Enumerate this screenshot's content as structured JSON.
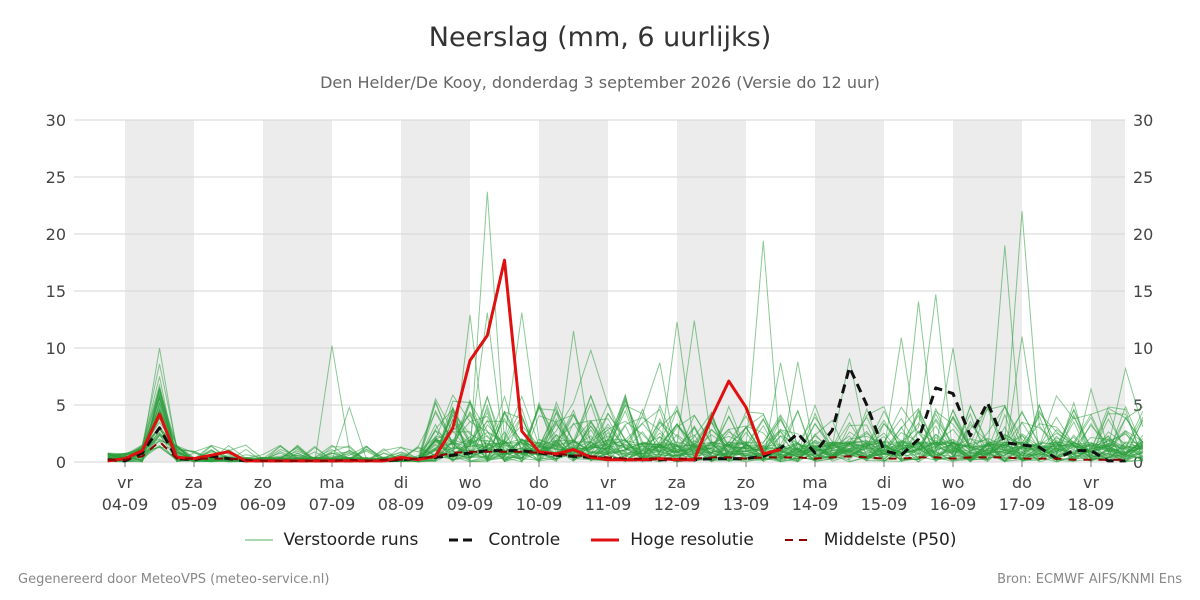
{
  "chart_data": {
    "type": "line",
    "title": "Neerslag (mm, 6 uurlijks)",
    "subtitle": "Den Helder/De Kooy, donderdag  3 september 2026 (Versie do 12 uur)",
    "ylim": [
      0,
      30
    ],
    "yticks": [
      0,
      5,
      10,
      15,
      20,
      25,
      30
    ],
    "x_categories": [
      {
        "day": "vr",
        "date": "04-09"
      },
      {
        "day": "za",
        "date": "05-09"
      },
      {
        "day": "zo",
        "date": "06-09"
      },
      {
        "day": "ma",
        "date": "07-09"
      },
      {
        "day": "di",
        "date": "08-09"
      },
      {
        "day": "wo",
        "date": "09-09"
      },
      {
        "day": "do",
        "date": "10-09"
      },
      {
        "day": "vr",
        "date": "11-09"
      },
      {
        "day": "za",
        "date": "12-09"
      },
      {
        "day": "zo",
        "date": "13-09"
      },
      {
        "day": "ma",
        "date": "14-09"
      },
      {
        "day": "di",
        "date": "15-09"
      },
      {
        "day": "wo",
        "date": "16-09"
      },
      {
        "day": "do",
        "date": "17-09"
      },
      {
        "day": "vr",
        "date": "18-09"
      }
    ],
    "grid": true,
    "legend_position": "bottom",
    "series": [
      {
        "name": "Controle",
        "style": "dashed",
        "color": "#111111",
        "points": [
          [
            -0.25,
            0.2
          ],
          [
            0,
            0.1
          ],
          [
            0.25,
            0.8
          ],
          [
            0.5,
            3.0
          ],
          [
            0.75,
            0.3
          ],
          [
            1,
            0.2
          ],
          [
            1.25,
            0.5
          ],
          [
            1.5,
            0.3
          ],
          [
            1.75,
            0.1
          ],
          [
            2,
            0.1
          ],
          [
            2.25,
            0.1
          ],
          [
            2.5,
            0.1
          ],
          [
            2.75,
            0.1
          ],
          [
            3,
            0.1
          ],
          [
            3.25,
            0.1
          ],
          [
            3.5,
            0.1
          ],
          [
            3.75,
            0.1
          ],
          [
            4,
            0.2
          ],
          [
            4.25,
            0.3
          ],
          [
            4.5,
            0.4
          ],
          [
            4.75,
            0.6
          ],
          [
            5,
            0.8
          ],
          [
            5.25,
            1.0
          ],
          [
            5.5,
            1.0
          ],
          [
            5.75,
            1.0
          ],
          [
            6,
            0.8
          ],
          [
            6.25,
            0.6
          ],
          [
            6.5,
            0.5
          ],
          [
            6.75,
            0.4
          ],
          [
            7,
            0.3
          ],
          [
            7.25,
            0.2
          ],
          [
            7.5,
            0.2
          ],
          [
            7.75,
            0.2
          ],
          [
            8,
            0.2
          ],
          [
            8.25,
            0.2
          ],
          [
            8.5,
            0.3
          ],
          [
            8.75,
            0.3
          ],
          [
            9,
            0.3
          ],
          [
            9.25,
            0.5
          ],
          [
            9.5,
            1.2
          ],
          [
            9.75,
            2.5
          ],
          [
            10,
            0.8
          ],
          [
            10.25,
            2.8
          ],
          [
            10.5,
            8.3
          ],
          [
            10.75,
            5.0
          ],
          [
            11,
            1.0
          ],
          [
            11.25,
            0.6
          ],
          [
            11.5,
            2.0
          ],
          [
            11.75,
            6.5
          ],
          [
            12,
            6.0
          ],
          [
            12.25,
            2.3
          ],
          [
            12.5,
            5.2
          ],
          [
            12.75,
            1.7
          ],
          [
            13,
            1.5
          ],
          [
            13.25,
            1.3
          ],
          [
            13.5,
            0.3
          ],
          [
            13.75,
            1.0
          ],
          [
            14,
            1.0
          ],
          [
            14.25,
            0.1
          ],
          [
            14.5,
            0.1
          ]
        ]
      },
      {
        "name": "Hoge resolutie",
        "style": "solid",
        "color": "#e01010",
        "points": [
          [
            -0.25,
            0.1
          ],
          [
            0,
            0.3
          ],
          [
            0.25,
            1.0
          ],
          [
            0.5,
            4.2
          ],
          [
            0.75,
            0.4
          ],
          [
            1,
            0.3
          ],
          [
            1.25,
            0.6
          ],
          [
            1.5,
            0.9
          ],
          [
            1.75,
            0.1
          ],
          [
            2,
            0.1
          ],
          [
            2.25,
            0.1
          ],
          [
            2.5,
            0.1
          ],
          [
            2.75,
            0.1
          ],
          [
            3,
            0.1
          ],
          [
            3.25,
            0.1
          ],
          [
            3.5,
            0.1
          ],
          [
            3.75,
            0.1
          ],
          [
            4,
            0.4
          ],
          [
            4.25,
            0.2
          ],
          [
            4.5,
            0.5
          ],
          [
            4.75,
            3.0
          ],
          [
            5,
            8.9
          ],
          [
            5.25,
            11.1
          ],
          [
            5.5,
            17.7
          ],
          [
            5.75,
            2.7
          ],
          [
            6,
            0.9
          ],
          [
            6.25,
            0.7
          ],
          [
            6.5,
            1.1
          ],
          [
            6.75,
            0.4
          ],
          [
            7,
            0.2
          ],
          [
            7.25,
            0.2
          ],
          [
            7.5,
            0.2
          ],
          [
            7.75,
            0.3
          ],
          [
            8,
            0.2
          ],
          [
            8.25,
            0.2
          ],
          [
            8.5,
            3.9
          ],
          [
            8.75,
            7.1
          ],
          [
            9,
            4.8
          ],
          [
            9.25,
            0.7
          ],
          [
            9.5,
            1.1
          ]
        ]
      },
      {
        "name": "Middelste (P50)",
        "style": "dashed",
        "color": "#8b0000",
        "points": [
          [
            -0.25,
            0.2
          ],
          [
            0,
            0.2
          ],
          [
            0.25,
            0.5
          ],
          [
            0.5,
            1.8
          ],
          [
            0.75,
            0.3
          ],
          [
            1,
            0.3
          ],
          [
            1.25,
            0.3
          ],
          [
            1.5,
            0.3
          ],
          [
            1.75,
            0.2
          ],
          [
            2,
            0.1
          ],
          [
            2.25,
            0.1
          ],
          [
            2.5,
            0.1
          ],
          [
            2.75,
            0.1
          ],
          [
            3,
            0.1
          ],
          [
            3.25,
            0.2
          ],
          [
            3.5,
            0.1
          ],
          [
            3.75,
            0.2
          ],
          [
            4,
            0.2
          ],
          [
            4.25,
            0.3
          ],
          [
            4.5,
            0.5
          ],
          [
            4.75,
            0.8
          ],
          [
            5,
            0.9
          ],
          [
            5.25,
            0.9
          ],
          [
            5.5,
            0.9
          ],
          [
            5.75,
            0.9
          ],
          [
            6,
            0.8
          ],
          [
            6.25,
            0.7
          ],
          [
            6.5,
            0.6
          ],
          [
            6.75,
            0.5
          ],
          [
            7,
            0.4
          ],
          [
            7.25,
            0.3
          ],
          [
            7.5,
            0.3
          ],
          [
            7.75,
            0.3
          ],
          [
            8,
            0.3
          ],
          [
            8.25,
            0.3
          ],
          [
            8.5,
            0.4
          ],
          [
            8.75,
            0.4
          ],
          [
            9,
            0.3
          ],
          [
            9.25,
            0.4
          ],
          [
            9.5,
            0.4
          ],
          [
            9.75,
            0.4
          ],
          [
            10,
            0.3
          ],
          [
            10.25,
            0.4
          ],
          [
            10.5,
            0.5
          ],
          [
            10.75,
            0.4
          ],
          [
            11,
            0.3
          ],
          [
            11.25,
            0.3
          ],
          [
            11.5,
            0.4
          ],
          [
            11.75,
            0.4
          ],
          [
            12,
            0.3
          ],
          [
            12.25,
            0.4
          ],
          [
            12.5,
            0.4
          ],
          [
            12.75,
            0.4
          ],
          [
            13,
            0.3
          ],
          [
            13.25,
            0.3
          ],
          [
            13.5,
            0.3
          ],
          [
            13.75,
            0.2
          ],
          [
            14,
            0.2
          ],
          [
            14.25,
            0.2
          ],
          [
            14.5,
            0.2
          ]
        ]
      }
    ],
    "ensemble": {
      "name": "Verstoorde runs",
      "color": "#2e9e3e",
      "count": 50,
      "x_start": -0.25,
      "x_step": 0.25,
      "peaks": [
        [
          0.5,
          10.0
        ],
        [
          0.5,
          8.6
        ],
        [
          0.5,
          7.5
        ],
        [
          3.0,
          10.2
        ],
        [
          3.25,
          4.8
        ],
        [
          5.25,
          23.7
        ],
        [
          5.0,
          12.9
        ],
        [
          5.25,
          13.1
        ],
        [
          5.75,
          13.1
        ],
        [
          6.5,
          11.5
        ],
        [
          6.75,
          9.8
        ],
        [
          7.75,
          8.7
        ],
        [
          8.0,
          12.3
        ],
        [
          8.25,
          12.4
        ],
        [
          9.25,
          19.4
        ],
        [
          9.5,
          8.7
        ],
        [
          9.75,
          8.8
        ],
        [
          10.5,
          9.1
        ],
        [
          11.25,
          10.9
        ],
        [
          11.5,
          14.1
        ],
        [
          11.75,
          14.7
        ],
        [
          12.0,
          10.0
        ],
        [
          12.75,
          19.0
        ],
        [
          13.0,
          22.0
        ],
        [
          13.0,
          11.0
        ],
        [
          13.5,
          5.8
        ],
        [
          13.75,
          5.2
        ],
        [
          14.0,
          6.4
        ],
        [
          14.5,
          8.2
        ]
      ]
    }
  },
  "legend": {
    "ensemble_label": "Verstoorde runs",
    "control_label": "Controle",
    "hires_label": "Hoge resolutie",
    "median_label": "Middelste (P50)"
  },
  "footer": {
    "left": "Gegenereerd door MeteoVPS (meteo-service.nl)",
    "right": "Bron: ECMWF AIFS/KNMI Ens"
  }
}
